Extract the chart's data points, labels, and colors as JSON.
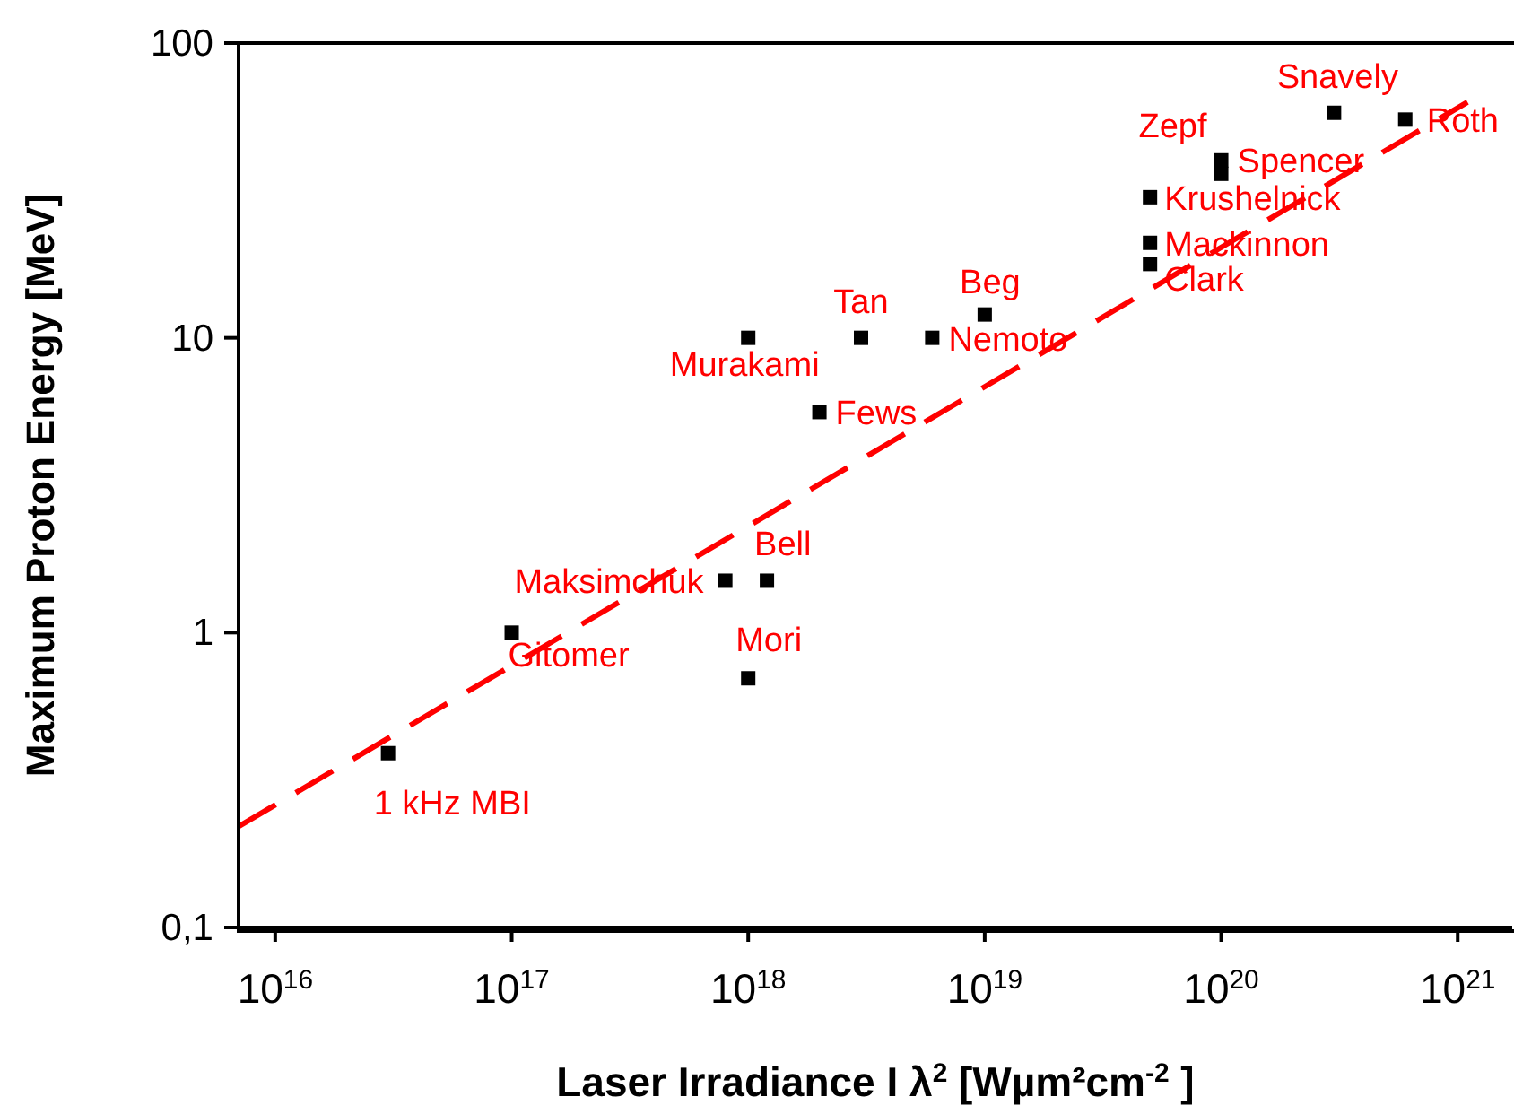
{
  "chart_data": {
    "type": "scatter",
    "xlabel": "Laser Irradiance I  λ$^{2}$  [Wµm²cm$^{-2}$ ]",
    "ylabel": "Maximum Proton Energy [MeV]",
    "log": "xy",
    "xlim": [
      7000000000000000.0,
      1.7e+21
    ],
    "ylim": [
      0.1,
      100
    ],
    "xticks": [
      {
        "value": 1e+16,
        "label": "10$^{16}$"
      },
      {
        "value": 1e+17,
        "label": "10$^{17}$"
      },
      {
        "value": 1e+18,
        "label": "10$^{18}$"
      },
      {
        "value": 1e+19,
        "label": "10$^{19}$"
      },
      {
        "value": 1e+20,
        "label": "10$^{20}$"
      },
      {
        "value": 1e+21,
        "label": "10$^{21}$"
      }
    ],
    "yticks": [
      {
        "value": 0.1,
        "label": "0,1"
      },
      1,
      10,
      100
    ],
    "series": [
      {
        "color": "#000000",
        "marker": "square",
        "x": [
          3e+16,
          1e+17,
          8e+17,
          1.2e+18,
          1e+18,
          1e+18,
          2e+18,
          3e+18,
          6e+18,
          1e+19,
          5e+19,
          5e+19,
          5e+19,
          1e+20,
          1e+20,
          3e+20,
          6e+20
        ],
        "values": [
          0.39,
          1,
          1.5,
          1.5,
          0.7,
          10,
          5.6,
          10,
          10,
          12,
          30,
          21,
          17.8,
          40,
          36,
          58,
          55
        ]
      },
      {
        "type": "line",
        "color": "#ff0000",
        "line_style": "dashed",
        "marker": "none",
        "x": [
          7000000000000000.0,
          1.1e+21
        ],
        "values": [
          0.22,
          63
        ]
      }
    ],
    "annotations": [
      {
        "text": "1 kHz MBI",
        "x": 3e+16,
        "y": 0.39
      },
      {
        "text": "Gitomer",
        "x": 1e+17,
        "y": 1
      },
      {
        "text": "Maksimchuk",
        "x": 8e+17,
        "y": 1.5
      },
      {
        "text": "Bell",
        "x": 1.2e+18,
        "y": 1.5
      },
      {
        "text": "Mori",
        "x": 1e+18,
        "y": 0.7
      },
      {
        "text": "Murakami",
        "x": 1e+18,
        "y": 10
      },
      {
        "text": "Fews",
        "x": 2e+18,
        "y": 5.6
      },
      {
        "text": "Tan",
        "x": 3e+18,
        "y": 10
      },
      {
        "text": "Nemoto",
        "x": 6e+18,
        "y": 10
      },
      {
        "text": "Beg",
        "x": 1e+19,
        "y": 12
      },
      {
        "text": "Zepf",
        "x": 1e+20,
        "y": 40
      },
      {
        "text": "Spencer",
        "x": 1e+20,
        "y": 36
      },
      {
        "text": "Krushelnick",
        "x": 5e+19,
        "y": 30
      },
      {
        "text": "Mackinnon",
        "x": 5e+19,
        "y": 21
      },
      {
        "text": "Clark",
        "x": 5e+19,
        "y": 17.8
      },
      {
        "text": "Snavely",
        "x": 3e+20,
        "y": 58
      },
      {
        "text": "Roth",
        "x": 6e+20,
        "y": 55
      }
    ]
  }
}
